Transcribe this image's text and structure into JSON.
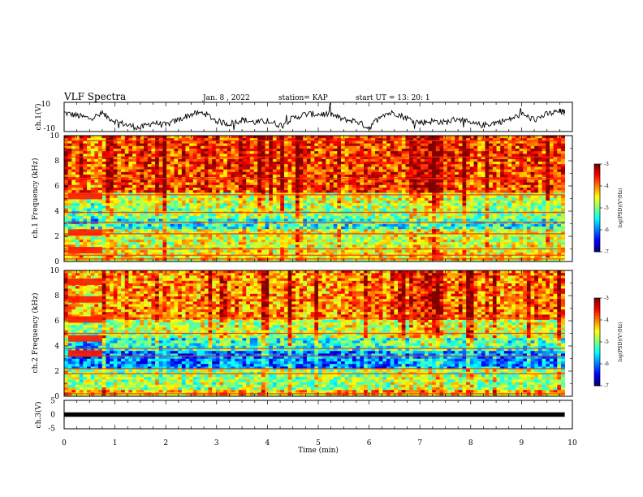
{
  "header": {
    "title": "VLF Spectra",
    "date": "Jan. 8 , 2022",
    "station": "station= KAP",
    "start": "start UT =  13: 20: 1"
  },
  "chart_data": [
    {
      "type": "line",
      "ylabel": "ch.1(V)",
      "ylim": [
        -10,
        10
      ],
      "y_ticks": [
        "10",
        "-10"
      ],
      "description": "waveform",
      "x": [
        0,
        0.25,
        0.5,
        0.75,
        1.0,
        1.25,
        1.5,
        1.75,
        2.0,
        2.25,
        2.5,
        2.75,
        3.0,
        3.25,
        3.5,
        3.75,
        4.0,
        4.25,
        4.5,
        4.75,
        5.0,
        5.25,
        5.5,
        5.75,
        6.0,
        6.25,
        6.5,
        6.75,
        7.0,
        7.25,
        7.5,
        7.75,
        8.0,
        8.25,
        8.5,
        8.75,
        9.0,
        9.25,
        9.5,
        9.75,
        9.85
      ],
      "values": [
        3,
        1,
        -1,
        2,
        -3,
        -6,
        -8,
        -4,
        -6,
        -2,
        2,
        3,
        -3,
        -5,
        -2,
        -4,
        -3,
        -6,
        -1,
        2,
        2,
        2,
        -2,
        -3,
        -8,
        2,
        3,
        -1,
        -4,
        -3,
        -4,
        -1,
        -5,
        -6,
        -4,
        -2,
        2,
        -2,
        2,
        4,
        3
      ]
    },
    {
      "type": "heatmap",
      "ylabel": "ch.1 Frequency (kHz)",
      "ylim": [
        0,
        10
      ],
      "y_ticks": [
        "0",
        "2",
        "4",
        "6",
        "8",
        "10"
      ],
      "colorbar": {
        "label": "log(PSD)(V²/Hz)",
        "range": [
          -7,
          -3
        ],
        "ticks": [
          "-3",
          "-4",
          "-5",
          "-6",
          "-7"
        ]
      },
      "row_bands": [
        {
          "f_min": 0,
          "f_max": 0.8,
          "mean": -4.6
        },
        {
          "f_min": 0.8,
          "f_max": 2.4,
          "mean": -4.7
        },
        {
          "f_min": 2.4,
          "f_max": 3.4,
          "mean": -5.5
        },
        {
          "f_min": 3.4,
          "f_max": 4.5,
          "mean": -5.0
        },
        {
          "f_min": 4.5,
          "f_max": 5.5,
          "mean": -4.8
        },
        {
          "f_min": 5.5,
          "f_max": 10,
          "mean": -3.9
        }
      ],
      "lines_kHz": [
        0.2,
        0.5,
        1.0,
        2.2,
        3.1,
        3.9,
        5.3,
        6.6,
        8.3,
        9.6
      ],
      "early_patches": [
        {
          "t_end": 0.75,
          "f": 5.2
        },
        {
          "t_end": 0.75,
          "f": 2.3
        },
        {
          "t_end": 0.75,
          "f": 0.9
        }
      ]
    },
    {
      "type": "heatmap",
      "ylabel": "ch.2 Frequency (kHz)",
      "ylim": [
        0,
        10
      ],
      "y_ticks": [
        "0",
        "2",
        "4",
        "6",
        "8",
        "10"
      ],
      "colorbar": {
        "label": "log(PSD)(V²/Hz)",
        "range": [
          -7,
          -3
        ],
        "ticks": [
          "-3",
          "-4",
          "-5",
          "-6",
          "-7"
        ]
      },
      "row_bands": [
        {
          "f_min": 0,
          "f_max": 0.5,
          "mean": -4.3
        },
        {
          "f_min": 0.5,
          "f_max": 2.0,
          "mean": -5.0
        },
        {
          "f_min": 2.0,
          "f_max": 3.5,
          "mean": -6.1
        },
        {
          "f_min": 3.5,
          "f_max": 4.5,
          "mean": -5.5
        },
        {
          "f_min": 4.5,
          "f_max": 6.0,
          "mean": -4.9
        },
        {
          "f_min": 6.0,
          "f_max": 10,
          "mean": -4.2
        }
      ],
      "lines_kHz": [
        0.2,
        1.8,
        2.2,
        3.2,
        3.8,
        5.0,
        6.2
      ],
      "early_patches": [
        {
          "t_end": 0.75,
          "f": 9.1
        },
        {
          "t_end": 0.75,
          "f": 7.7
        },
        {
          "t_end": 0.75,
          "f": 6.1
        },
        {
          "t_end": 0.75,
          "f": 4.6
        },
        {
          "t_end": 0.75,
          "f": 3.4
        }
      ]
    },
    {
      "type": "line",
      "ylabel": "ch.3(V)",
      "ylim": [
        -5,
        5
      ],
      "y_ticks": [
        "5",
        "0",
        "-5"
      ],
      "x": [
        0,
        9.85
      ],
      "values": [
        0,
        0
      ],
      "band_halfwidth": 0.4
    }
  ],
  "xaxis": {
    "label": "Time (min)",
    "xlim": [
      0,
      10
    ],
    "ticks": [
      "0",
      "1",
      "2",
      "3",
      "4",
      "5",
      "6",
      "7",
      "8",
      "9",
      "10"
    ]
  },
  "colors": {
    "scale": [
      "#00007f",
      "#0000ff",
      "#007fff",
      "#00ffff",
      "#7fff7f",
      "#ffff00",
      "#ff7f00",
      "#ff0000",
      "#7f0000"
    ]
  }
}
